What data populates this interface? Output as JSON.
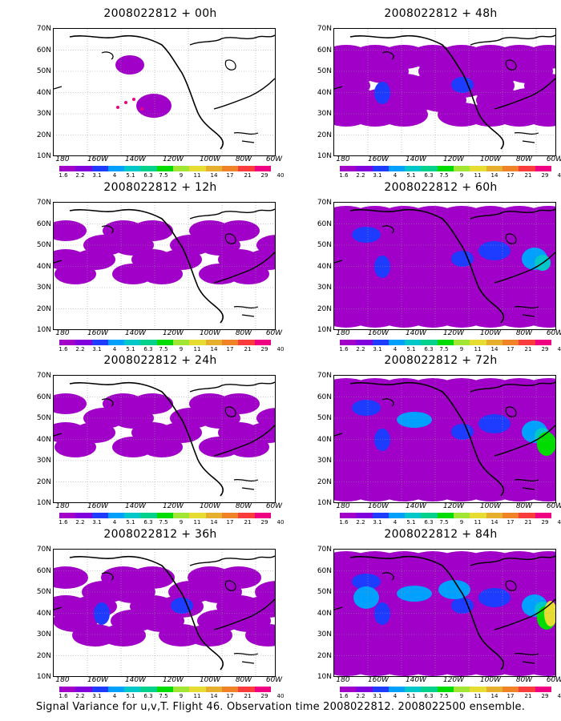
{
  "panels": [
    {
      "title": "2008022812 + 00h",
      "level": 0
    },
    {
      "title": "2008022812 + 48h",
      "level": 3
    },
    {
      "title": "2008022812 + 12h",
      "level": 1
    },
    {
      "title": "2008022812 + 60h",
      "level": 4
    },
    {
      "title": "2008022812 + 24h",
      "level": 1
    },
    {
      "title": "2008022812 + 72h",
      "level": 5
    },
    {
      "title": "2008022812 + 36h",
      "level": 2
    },
    {
      "title": "2008022812 + 84h",
      "level": 6
    }
  ],
  "y_ticks": [
    "70N",
    "60N",
    "50N",
    "40N",
    "30N",
    "20N",
    "10N"
  ],
  "x_ticks": [
    "180",
    "160W",
    "140W",
    "120W",
    "100W",
    "80W",
    "60W"
  ],
  "colorbar": {
    "labels": [
      "1.6",
      "2.2",
      "3.1",
      "4",
      "5.1",
      "6.3",
      "7.5",
      "9",
      "11",
      "14",
      "17",
      "21",
      "29",
      "40"
    ],
    "colors": [
      "#a000c8",
      "#8200dc",
      "#1e3cff",
      "#00a0ff",
      "#00c8c8",
      "#00d28c",
      "#00dc00",
      "#a0e632",
      "#e6dc32",
      "#e6af2d",
      "#f08228",
      "#fa3c3c",
      "#f00082"
    ]
  },
  "footer": "Signal Variance for u,v,T. Flight 46. Observation time 2008022812. 2008022500 ensemble."
}
